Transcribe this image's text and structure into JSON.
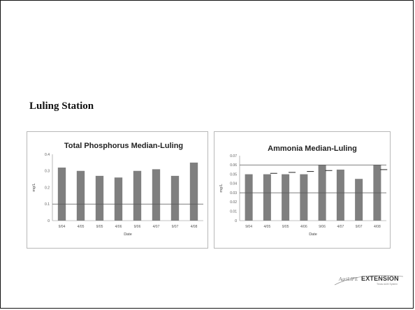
{
  "slide": {
    "title": "Luling Station"
  },
  "logo": {
    "agri": "AgriLIFE",
    "extension": "EXTENSION",
    "tagline": "Texas A&M System"
  },
  "colors": {
    "bar": "#7f7f7f",
    "reference_line": "#555555",
    "gridline": "#d6d6d6",
    "axis": "#888888"
  },
  "chart_data": [
    {
      "id": "total-phosphorus",
      "type": "bar",
      "title": "Total Phosphorus Median-Luling",
      "xlabel": "Date",
      "ylabel": "mg/L",
      "categories": [
        "9/04",
        "4/05",
        "9/05",
        "4/06",
        "9/06",
        "4/07",
        "9/07",
        "4/08"
      ],
      "values": [
        0.32,
        0.3,
        0.27,
        0.26,
        0.3,
        0.31,
        0.27,
        0.35
      ],
      "ylim": [
        0,
        0.4
      ],
      "yticks": [
        "0",
        "0.1",
        "0.2",
        "0.3",
        "0.4"
      ],
      "reference_lines": [
        0.1
      ],
      "grid": false,
      "legend": "none"
    },
    {
      "id": "ammonia",
      "type": "bar",
      "title": "Ammonia Median-Luling",
      "xlabel": "Date",
      "ylabel": "mg/L",
      "categories": [
        "9/04",
        "4/05",
        "9/05",
        "4/06",
        "9/06",
        "4/07",
        "9/07",
        "4/08"
      ],
      "values": [
        0.05,
        0.05,
        0.05,
        0.05,
        0.06,
        0.055,
        0.045,
        0.06
      ],
      "ylim": [
        0,
        0.07
      ],
      "yticks": [
        "0",
        "0.01",
        "0.02",
        "0.03",
        "0.04",
        "0.05",
        "0.06",
        "0.07"
      ],
      "reference_lines": [
        0.03,
        0.06
      ],
      "marker_values": [
        null,
        0.051,
        0.052,
        0.053,
        0.054,
        null,
        null,
        0.055
      ],
      "grid": false,
      "legend": "none"
    }
  ]
}
